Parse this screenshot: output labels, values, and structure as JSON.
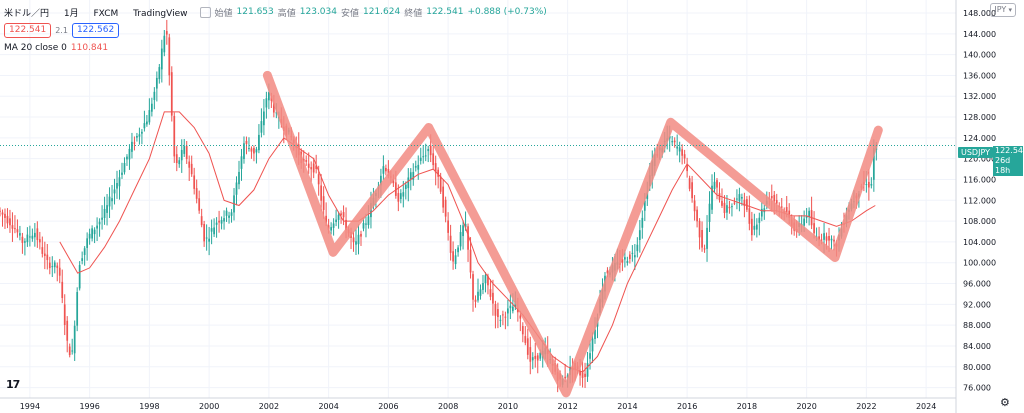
{
  "legend": {
    "symbol": "米ドル／円",
    "interval": "1月",
    "exchange": "FXCM",
    "source": "TradingView",
    "open_label": "始値",
    "open_value": "121.653",
    "high_label": "高値",
    "high_value": "123.034",
    "low_label": "安値",
    "low_value": "121.624",
    "close_label": "終値",
    "close_value": "122.541",
    "change": "+0.888 (+0.73%)",
    "bid": "122.541",
    "spread": "2.1",
    "ask": "122.562",
    "ma_label": "MA 20 close 0",
    "ma_value": "110.841"
  },
  "currency": "JPY",
  "badge": {
    "ticker": "USDJPY",
    "price": "122.541",
    "countdown": "26d 18h"
  },
  "logo_text": "17",
  "colors": {
    "up": "#26a69a",
    "down": "#ef5350",
    "ma": "#ef5350",
    "trend": "#f28b82",
    "grid": "#f0f3fa",
    "axis_text": "#131722"
  },
  "chart_data": {
    "type": "candlestick",
    "interval": "monthly",
    "x_ticks": [
      "1994",
      "1996",
      "1998",
      "2000",
      "2002",
      "2004",
      "2006",
      "2008",
      "2010",
      "2012",
      "2014",
      "2016",
      "2018",
      "2020",
      "2022",
      "2024"
    ],
    "y_ticks": [
      "76.000",
      "80.000",
      "84.000",
      "88.000",
      "92.000",
      "96.000",
      "100.000",
      "104.000",
      "108.000",
      "112.000",
      "116.000",
      "120.000",
      "124.000",
      "128.000",
      "132.000",
      "136.000",
      "140.000",
      "144.000",
      "148.000"
    ],
    "xlim": [
      1993.0,
      2025.0
    ],
    "ylim": [
      74.0,
      150.5
    ],
    "price_path": [
      [
        1993.0,
        110
      ],
      [
        1993.5,
        107
      ],
      [
        1993.8,
        104
      ],
      [
        1994.2,
        106
      ],
      [
        1994.6,
        100
      ],
      [
        1995.0,
        99
      ],
      [
        1995.3,
        84
      ],
      [
        1995.45,
        82
      ],
      [
        1995.7,
        100
      ],
      [
        1996.0,
        105
      ],
      [
        1996.5,
        109
      ],
      [
        1997.0,
        116
      ],
      [
        1997.4,
        122
      ],
      [
        1997.8,
        126
      ],
      [
        1998.0,
        128
      ],
      [
        1998.3,
        135
      ],
      [
        1998.6,
        146
      ],
      [
        1998.9,
        118
      ],
      [
        1999.2,
        122
      ],
      [
        1999.5,
        116
      ],
      [
        1999.9,
        104
      ],
      [
        2000.3,
        108
      ],
      [
        2000.8,
        110
      ],
      [
        2001.2,
        123
      ],
      [
        2001.6,
        121
      ],
      [
        2002.0,
        133
      ],
      [
        2002.3,
        128
      ],
      [
        2002.8,
        124
      ],
      [
        2003.2,
        119
      ],
      [
        2003.6,
        118
      ],
      [
        2004.0,
        106
      ],
      [
        2004.4,
        110
      ],
      [
        2004.9,
        103
      ],
      [
        2005.3,
        108
      ],
      [
        2005.9,
        119
      ],
      [
        2006.4,
        112
      ],
      [
        2006.9,
        118
      ],
      [
        2007.4,
        122
      ],
      [
        2007.8,
        114
      ],
      [
        2008.2,
        100
      ],
      [
        2008.6,
        108
      ],
      [
        2008.9,
        92
      ],
      [
        2009.3,
        97
      ],
      [
        2009.7,
        89
      ],
      [
        2010.3,
        92
      ],
      [
        2010.8,
        81
      ],
      [
        2011.3,
        83
      ],
      [
        2011.8,
        77
      ],
      [
        2012.2,
        80
      ],
      [
        2012.6,
        78
      ],
      [
        2012.9,
        86
      ],
      [
        2013.3,
        98
      ],
      [
        2013.8,
        100
      ],
      [
        2014.3,
        102
      ],
      [
        2014.9,
        120
      ],
      [
        2015.4,
        124
      ],
      [
        2015.9,
        121
      ],
      [
        2016.4,
        107
      ],
      [
        2016.6,
        102
      ],
      [
        2016.9,
        116
      ],
      [
        2017.3,
        110
      ],
      [
        2017.9,
        113
      ],
      [
        2018.2,
        106
      ],
      [
        2018.8,
        113
      ],
      [
        2019.3,
        110
      ],
      [
        2019.7,
        106
      ],
      [
        2020.1,
        110
      ],
      [
        2020.3,
        105
      ],
      [
        2020.8,
        105
      ],
      [
        2021.0,
        103
      ],
      [
        2021.4,
        110
      ],
      [
        2021.9,
        115
      ],
      [
        2022.2,
        115
      ],
      [
        2022.3,
        122.5
      ]
    ],
    "ma_path": [
      [
        1995.0,
        104
      ],
      [
        1995.3,
        101
      ],
      [
        1995.6,
        98
      ],
      [
        1996.0,
        99
      ],
      [
        1996.5,
        103
      ],
      [
        1997.0,
        108
      ],
      [
        1997.5,
        114
      ],
      [
        1998.0,
        120
      ],
      [
        1998.5,
        129
      ],
      [
        1999.0,
        129
      ],
      [
        1999.5,
        126
      ],
      [
        2000.0,
        121
      ],
      [
        2000.5,
        112
      ],
      [
        2001.0,
        111
      ],
      [
        2001.5,
        114
      ],
      [
        2002.0,
        120
      ],
      [
        2002.5,
        124
      ],
      [
        2003.0,
        122
      ],
      [
        2003.5,
        120
      ],
      [
        2004.0,
        113
      ],
      [
        2004.5,
        108
      ],
      [
        2005.0,
        108
      ],
      [
        2005.5,
        110
      ],
      [
        2006.0,
        113
      ],
      [
        2006.5,
        115
      ],
      [
        2007.0,
        117
      ],
      [
        2007.5,
        118
      ],
      [
        2008.0,
        115
      ],
      [
        2008.5,
        108
      ],
      [
        2009.0,
        100
      ],
      [
        2009.5,
        96
      ],
      [
        2010.0,
        93
      ],
      [
        2010.5,
        90
      ],
      [
        2011.0,
        86
      ],
      [
        2011.5,
        82
      ],
      [
        2012.0,
        80
      ],
      [
        2012.5,
        79
      ],
      [
        2013.0,
        82
      ],
      [
        2013.5,
        88
      ],
      [
        2014.0,
        96
      ],
      [
        2014.5,
        102
      ],
      [
        2015.0,
        108
      ],
      [
        2015.5,
        114
      ],
      [
        2016.0,
        119
      ],
      [
        2016.5,
        116
      ],
      [
        2017.0,
        113
      ],
      [
        2017.5,
        112
      ],
      [
        2018.0,
        111
      ],
      [
        2018.5,
        110
      ],
      [
        2019.0,
        110
      ],
      [
        2019.5,
        109
      ],
      [
        2020.0,
        109
      ],
      [
        2020.5,
        108
      ],
      [
        2021.0,
        107
      ],
      [
        2021.5,
        108
      ],
      [
        2022.0,
        110
      ],
      [
        2022.3,
        111
      ]
    ],
    "trend_lines": [
      [
        2001.95,
        136.0
      ],
      [
        2004.15,
        102.0
      ],
      [
        2007.35,
        126.0
      ],
      [
        2011.95,
        75.0
      ],
      [
        2015.45,
        127.0
      ],
      [
        2020.95,
        101.0
      ],
      [
        2022.4,
        125.5
      ]
    ],
    "last_price": 122.541
  }
}
